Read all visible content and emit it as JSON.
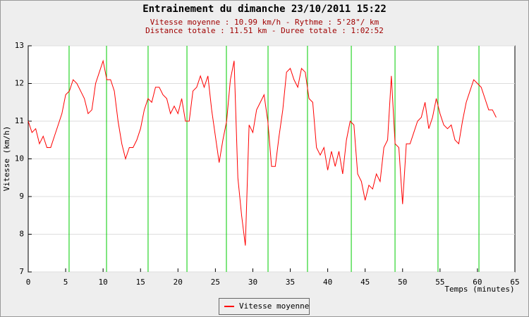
{
  "chart_data": {
    "type": "line",
    "title": "Entrainement du dimanche 23/10/2011 15:22",
    "subtitle": [
      "Vitesse moyenne : 10.99 km/h - Rythme : 5'28\"/ km",
      "Distance totale : 11.51 km - Duree totale : 1:02:52"
    ],
    "x_label": "Temps (minutes)",
    "y_label": "Vitesse (km/h)",
    "xlim": [
      0,
      65
    ],
    "xticks": [
      0,
      5,
      10,
      15,
      20,
      25,
      30,
      35,
      40,
      45,
      50,
      55,
      60,
      65
    ],
    "ylim": [
      7,
      13
    ],
    "yticks": [
      7,
      8,
      9,
      10,
      11,
      12,
      13
    ],
    "grid": true,
    "legend": "bottom",
    "markers": [
      5.46,
      10.46,
      16.01,
      21.2,
      26.47,
      32.03,
      37.3,
      43.15,
      48.99,
      54.73,
      60.2
    ],
    "marker_color": "#00cc00",
    "x": [
      0,
      0.5,
      1,
      1.5,
      2,
      2.5,
      3,
      3.5,
      4,
      4.5,
      5,
      5.5,
      6,
      6.5,
      7,
      7.5,
      8,
      8.5,
      9,
      9.5,
      10,
      10.5,
      11,
      11.5,
      12,
      12.5,
      13,
      13.5,
      14,
      14.5,
      15,
      15.5,
      16,
      16.5,
      17,
      17.5,
      18,
      18.5,
      19,
      19.5,
      20,
      20.5,
      21,
      21.5,
      22,
      22.5,
      23,
      23.5,
      24,
      24.5,
      25,
      25.5,
      26,
      26.5,
      27,
      27.5,
      28,
      28.5,
      29,
      29.5,
      30,
      30.5,
      31,
      31.5,
      32,
      32.5,
      33,
      33.5,
      34,
      34.5,
      35,
      35.5,
      36,
      36.5,
      37,
      37.5,
      38,
      38.5,
      39,
      39.5,
      40,
      40.5,
      41,
      41.5,
      42,
      42.5,
      43,
      43.5,
      44,
      44.5,
      45,
      45.5,
      46,
      46.5,
      47,
      47.5,
      48,
      48.5,
      49,
      49.5,
      50,
      50.5,
      51,
      51.5,
      52,
      52.5,
      53,
      53.5,
      54,
      54.5,
      55,
      55.5,
      56,
      56.5,
      57,
      57.5,
      58,
      58.5,
      59,
      59.5,
      60,
      60.5,
      61,
      61.5,
      62,
      62.5
    ],
    "series": [
      {
        "name": "Vitesse moyenne",
        "color": "#ff0000",
        "values": [
          11.0,
          10.7,
          10.8,
          10.4,
          10.6,
          10.3,
          10.3,
          10.6,
          10.9,
          11.2,
          11.7,
          11.8,
          12.1,
          12.0,
          11.8,
          11.6,
          11.2,
          11.3,
          12.0,
          12.3,
          12.6,
          12.1,
          12.1,
          11.8,
          11.0,
          10.4,
          10.0,
          10.3,
          10.3,
          10.5,
          10.8,
          11.3,
          11.6,
          11.5,
          11.9,
          11.9,
          11.7,
          11.6,
          11.2,
          11.4,
          11.2,
          11.6,
          11.0,
          11.0,
          11.8,
          11.9,
          12.2,
          11.9,
          12.2,
          11.3,
          10.6,
          9.9,
          10.5,
          11.0,
          12.1,
          12.6,
          9.5,
          8.5,
          7.7,
          10.9,
          10.7,
          11.3,
          11.5,
          11.7,
          11.0,
          9.8,
          9.8,
          10.6,
          11.3,
          12.3,
          12.4,
          12.1,
          11.9,
          12.4,
          12.3,
          11.6,
          11.5,
          10.3,
          10.1,
          10.3,
          9.7,
          10.2,
          9.8,
          10.2,
          9.6,
          10.5,
          11.0,
          10.9,
          9.6,
          9.4,
          8.9,
          9.3,
          9.2,
          9.6,
          9.4,
          10.3,
          10.5,
          12.2,
          10.4,
          10.3,
          8.8,
          10.4,
          10.4,
          10.7,
          11.0,
          11.1,
          11.5,
          10.8,
          11.1,
          11.6,
          11.2,
          10.9,
          10.8,
          10.9,
          10.5,
          10.4,
          11.0,
          11.5,
          11.8,
          12.1,
          12.0,
          11.9,
          11.6,
          11.3,
          11.3,
          11.1
        ]
      }
    ]
  }
}
